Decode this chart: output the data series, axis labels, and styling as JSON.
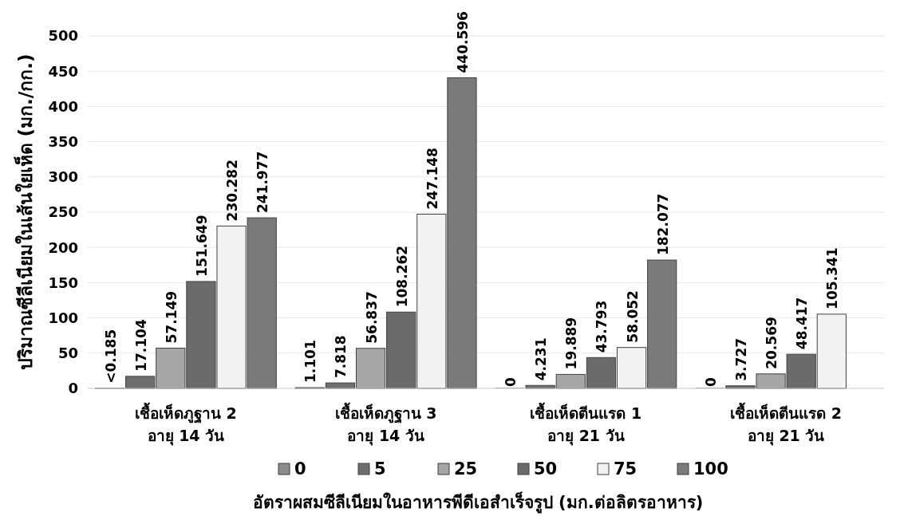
{
  "chart_data": {
    "type": "bar",
    "categories": [
      "เชื้อเห็ดภูฐาน 2\nอายุ 14 วัน",
      "เชื้อเห็ดภูฐาน 3\nอายุ 14 วัน",
      "เชื้อเห็ดตีนแรด 1\nอายุ 21 วัน",
      "เชื้อเห็ดตีนแรด 2\nอายุ 21 วัน"
    ],
    "series": [
      {
        "name": "0",
        "color": "#8c8c8c",
        "values": [
          0.185,
          1.101,
          0,
          0
        ],
        "value_labels": [
          "<0.185",
          "1.101",
          "0",
          "0"
        ]
      },
      {
        "name": "5",
        "color": "#6e6e6e",
        "values": [
          17.104,
          7.818,
          4.231,
          3.727
        ],
        "value_labels": [
          "17.104",
          "7.818",
          "4.231",
          "3.727"
        ]
      },
      {
        "name": "25",
        "color": "#a6a6a6",
        "values": [
          57.149,
          56.837,
          19.889,
          20.569
        ],
        "value_labels": [
          "57.149",
          "56.837",
          "19.889",
          "20.569"
        ]
      },
      {
        "name": "50",
        "color": "#6b6b6b",
        "values": [
          151.649,
          108.262,
          43.793,
          48.417
        ],
        "value_labels": [
          "151.649",
          "108.262",
          "43.793",
          "48.417"
        ]
      },
      {
        "name": "75",
        "color": "#f2f2f2",
        "values": [
          230.282,
          247.148,
          58.052,
          105.341
        ],
        "value_labels": [
          "230.282",
          "247.148",
          "58.052",
          "105.341"
        ]
      },
      {
        "name": "100",
        "color": "#7a7a7a",
        "values": [
          241.977,
          440.596,
          182.077,
          null
        ],
        "value_labels": [
          "241.977",
          "440.596",
          "182.077",
          null
        ]
      }
    ],
    "ylabel": "ปริมาณซีลีเนียมในเส้นใยเห็ด (มก./กก.)",
    "xlabel": "อัตราผสมซีลีเนียมในอาหารพีดีเอสำเร็จรูป (มก.ต่อลิตรอาหาร)",
    "ylim": [
      0,
      500
    ],
    "yticks": [
      0,
      50,
      100,
      150,
      200,
      250,
      300,
      350,
      400,
      450,
      500
    ],
    "grid": "y",
    "legend": "bottom"
  }
}
